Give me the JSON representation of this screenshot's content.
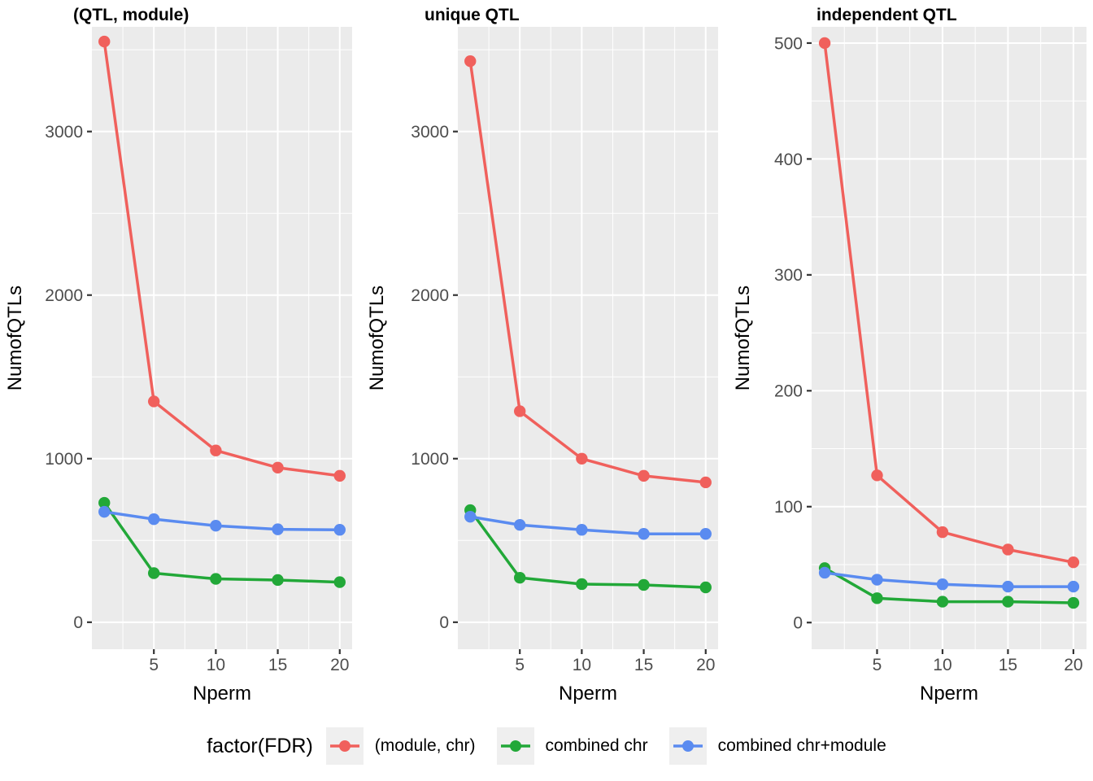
{
  "legend": {
    "title": "factor(FDR)",
    "key_background": "#EFEFEF",
    "items": [
      {
        "label": "(module, chr)",
        "color": "#F0605C"
      },
      {
        "label": "combined chr",
        "color": "#22A838"
      },
      {
        "label": "combined chr+module",
        "color": "#5A8BF0"
      }
    ]
  },
  "style": {
    "panel_background": "#EBEBEB",
    "grid_color": "#FFFFFF",
    "tick_label_color": "#4D4D4D",
    "tick_mark_color": "#333333",
    "axis_title_color": "#000000",
    "title_color": "#000000"
  },
  "chart_data": [
    {
      "type": "line",
      "title": "(QTL, module)",
      "xlabel": "Nperm",
      "ylabel": "NumofQTLs",
      "x": [
        1,
        5,
        10,
        15,
        20
      ],
      "xticks": [
        5,
        10,
        15,
        20
      ],
      "xlim": [
        0,
        21
      ],
      "yticks": [
        0,
        1000,
        2000,
        3000
      ],
      "ylim": [
        -165,
        3640
      ],
      "grid": true,
      "series": [
        {
          "name": "(module, chr)",
          "color": "#F0605C",
          "values": [
            3550,
            1350,
            1050,
            945,
            895
          ]
        },
        {
          "name": "combined chr",
          "color": "#22A838",
          "values": [
            730,
            300,
            265,
            258,
            245
          ]
        },
        {
          "name": "combined chr+module",
          "color": "#5A8BF0",
          "values": [
            675,
            630,
            590,
            568,
            565
          ]
        }
      ]
    },
    {
      "type": "line",
      "title": "unique QTL",
      "xlabel": "Nperm",
      "ylabel": "NumofQTLs",
      "x": [
        1,
        5,
        10,
        15,
        20
      ],
      "xticks": [
        5,
        10,
        15,
        20
      ],
      "xlim": [
        0,
        21
      ],
      "yticks": [
        0,
        1000,
        2000,
        3000
      ],
      "ylim": [
        -165,
        3640
      ],
      "grid": true,
      "series": [
        {
          "name": "(module, chr)",
          "color": "#F0605C",
          "values": [
            3430,
            1290,
            1000,
            895,
            855
          ]
        },
        {
          "name": "combined chr",
          "color": "#22A838",
          "values": [
            685,
            272,
            233,
            228,
            213
          ]
        },
        {
          "name": "combined chr+module",
          "color": "#5A8BF0",
          "values": [
            645,
            595,
            565,
            540,
            540
          ]
        }
      ]
    },
    {
      "type": "line",
      "title": "independent QTL",
      "xlabel": "Nperm",
      "ylabel": "NumofQTLs",
      "x": [
        1,
        5,
        10,
        15,
        20
      ],
      "xticks": [
        5,
        10,
        15,
        20
      ],
      "xlim": [
        0,
        21
      ],
      "yticks": [
        0,
        100,
        200,
        300,
        400,
        500
      ],
      "ylim": [
        -23,
        514
      ],
      "grid": true,
      "series": [
        {
          "name": "(module, chr)",
          "color": "#F0605C",
          "values": [
            500,
            127,
            78,
            63,
            52
          ]
        },
        {
          "name": "combined chr",
          "color": "#22A838",
          "values": [
            47,
            21,
            18,
            18,
            17
          ]
        },
        {
          "name": "combined chr+module",
          "color": "#5A8BF0",
          "values": [
            43,
            37,
            33,
            31,
            31
          ]
        }
      ]
    }
  ]
}
